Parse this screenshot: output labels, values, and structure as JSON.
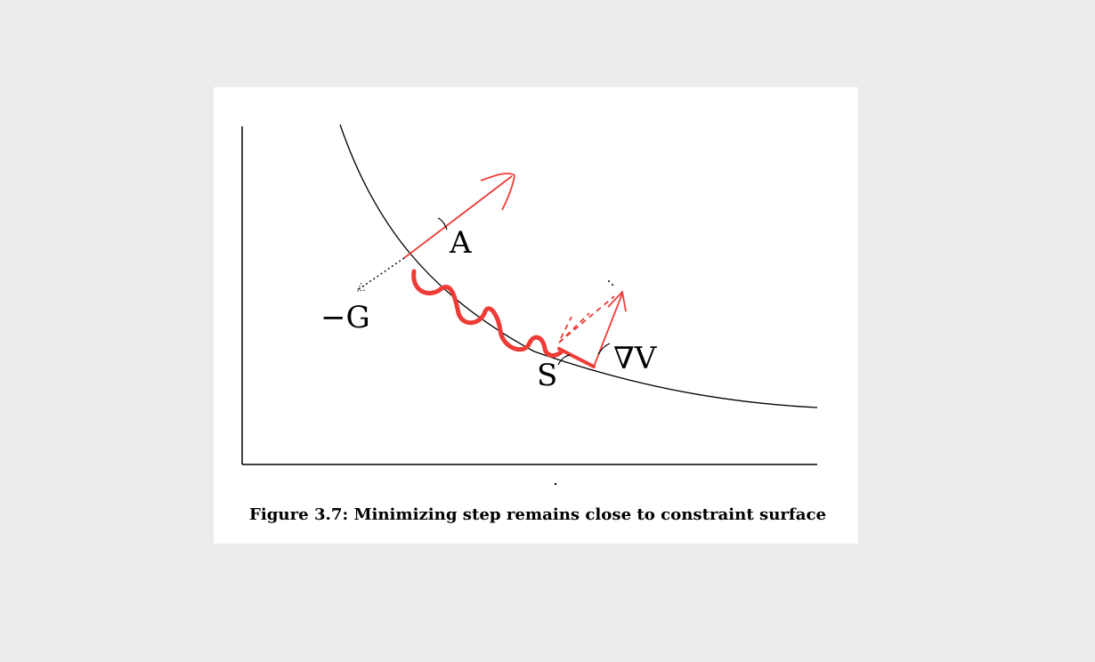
{
  "figure": {
    "caption": "Figure 3.7: Minimizing step remains close to constraint surface",
    "labels": {
      "a": "A",
      "neg_g": "−G",
      "s": "S",
      "grad_v": "∇V"
    },
    "colors": {
      "background": "#ececec",
      "paper": "#ffffff",
      "ink": "#000000",
      "annotation": "#ef3b36"
    }
  }
}
